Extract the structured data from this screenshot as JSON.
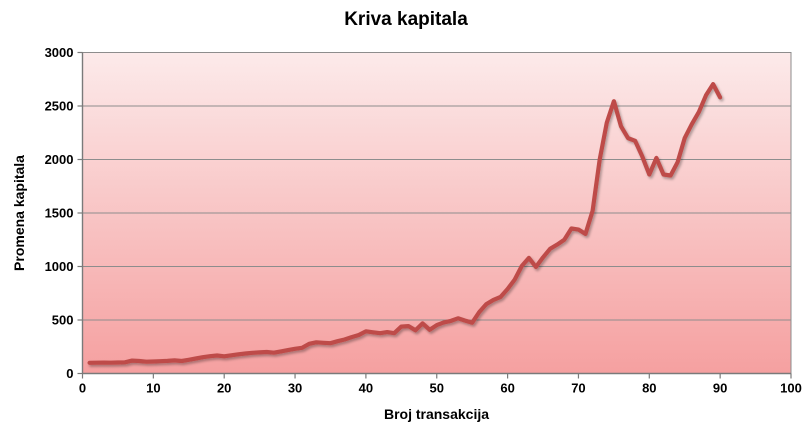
{
  "chart_data": {
    "type": "line",
    "title": "Kriva kapitala",
    "xlabel": "Broj transakcija",
    "ylabel": "Promena kapitala",
    "xlim": [
      0,
      100
    ],
    "ylim": [
      0,
      3000
    ],
    "xticks": [
      0,
      10,
      20,
      30,
      40,
      50,
      60,
      70,
      80,
      90,
      100
    ],
    "yticks": [
      0,
      500,
      1000,
      1500,
      2000,
      2500,
      3000
    ],
    "grid": "horizontal",
    "legend": "none",
    "series": [
      {
        "name": "Kriva kapitala",
        "x_start": 1,
        "values": [
          100,
          101,
          102,
          101,
          103,
          105,
          121,
          117,
          110,
          112,
          115,
          118,
          122,
          117,
          128,
          140,
          152,
          162,
          168,
          161,
          170,
          179,
          187,
          193,
          197,
          201,
          194,
          207,
          219,
          231,
          240,
          278,
          292,
          287,
          283,
          302,
          318,
          340,
          360,
          394,
          385,
          377,
          387,
          377,
          438,
          443,
          404,
          468,
          408,
          452,
          478,
          492,
          516,
          494,
          475,
          575,
          648,
          688,
          715,
          790,
          878,
          1005,
          1080,
          995,
          1085,
          1165,
          1205,
          1250,
          1355,
          1345,
          1305,
          1520,
          2000,
          2345,
          2545,
          2310,
          2200,
          2175,
          2030,
          1860,
          2015,
          1860,
          1850,
          1975,
          2200,
          2330,
          2445,
          2600,
          2705,
          2580
        ]
      }
    ],
    "colors": {
      "line": "#BE4B48",
      "plot_bg_top": "#FCEAEA",
      "plot_bg_bottom": "#F5A0A0",
      "gridline": "#8D8D8D",
      "axis": "#7A7A7A",
      "text": "#000000",
      "background": "#FFFFFF"
    }
  }
}
